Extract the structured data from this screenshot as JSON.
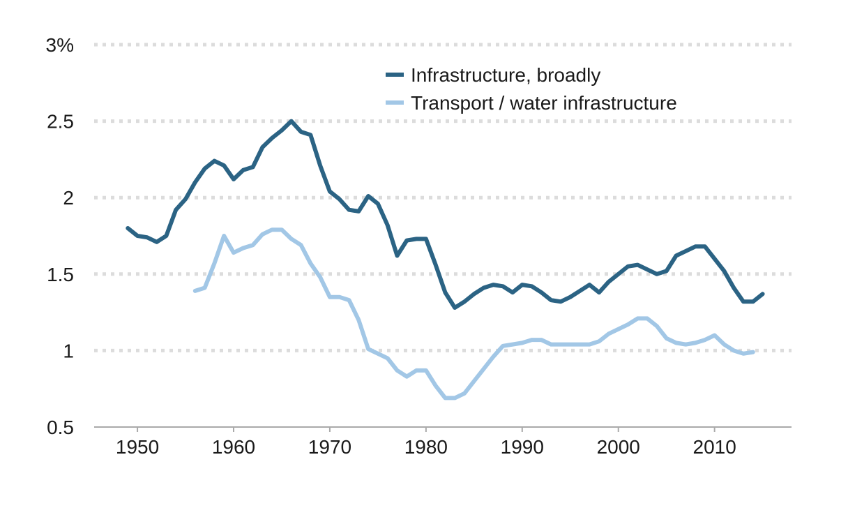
{
  "chart_data": {
    "type": "line",
    "title": "",
    "xlabel": "",
    "ylabel": "",
    "xlim": [
      1945.5,
      2018
    ],
    "ylim": [
      0.5,
      3
    ],
    "grid": true,
    "legend_placement": "top-center",
    "y_ticks": [
      {
        "value": 3,
        "label": "3%"
      },
      {
        "value": 2.5,
        "label": "2.5"
      },
      {
        "value": 2,
        "label": "2"
      },
      {
        "value": 1.5,
        "label": "1.5"
      },
      {
        "value": 1,
        "label": "1"
      },
      {
        "value": 0.5,
        "label": "0.5"
      }
    ],
    "x_ticks": [
      {
        "value": 1950,
        "label": "1950"
      },
      {
        "value": 1960,
        "label": "1960"
      },
      {
        "value": 1970,
        "label": "1970"
      },
      {
        "value": 1980,
        "label": "1980"
      },
      {
        "value": 1990,
        "label": "1990"
      },
      {
        "value": 2000,
        "label": "2000"
      },
      {
        "value": 2010,
        "label": "2010"
      }
    ],
    "series": [
      {
        "name": "Infrastructure, broadly",
        "color": "#2b6384",
        "x": [
          1949,
          1950,
          1951,
          1952,
          1953,
          1954,
          1955,
          1956,
          1957,
          1958,
          1959,
          1960,
          1961,
          1962,
          1963,
          1964,
          1965,
          1966,
          1967,
          1968,
          1969,
          1970,
          1971,
          1972,
          1973,
          1974,
          1975,
          1976,
          1977,
          1978,
          1979,
          1980,
          1981,
          1982,
          1983,
          1984,
          1985,
          1986,
          1987,
          1988,
          1989,
          1990,
          1991,
          1992,
          1993,
          1994,
          1995,
          1996,
          1997,
          1998,
          1999,
          2000,
          2001,
          2002,
          2003,
          2004,
          2005,
          2006,
          2007,
          2008,
          2009,
          2010,
          2011,
          2012,
          2013,
          2014,
          2015
        ],
        "values": [
          1.8,
          1.75,
          1.74,
          1.71,
          1.75,
          1.92,
          1.99,
          2.1,
          2.19,
          2.24,
          2.21,
          2.12,
          2.18,
          2.2,
          2.33,
          2.39,
          2.44,
          2.5,
          2.43,
          2.41,
          2.21,
          2.04,
          1.99,
          1.92,
          1.91,
          2.01,
          1.96,
          1.82,
          1.62,
          1.72,
          1.73,
          1.73,
          1.56,
          1.38,
          1.28,
          1.32,
          1.37,
          1.41,
          1.43,
          1.42,
          1.38,
          1.43,
          1.42,
          1.38,
          1.33,
          1.32,
          1.35,
          1.39,
          1.43,
          1.38,
          1.45,
          1.5,
          1.55,
          1.56,
          1.53,
          1.5,
          1.52,
          1.62,
          1.65,
          1.68,
          1.68,
          1.6,
          1.52,
          1.41,
          1.32,
          1.32,
          1.37
        ]
      },
      {
        "name": "Transport / water infrastructure",
        "color": "#a2c7e6",
        "x": [
          1956,
          1957,
          1958,
          1959,
          1960,
          1961,
          1962,
          1963,
          1964,
          1965,
          1966,
          1967,
          1968,
          1969,
          1970,
          1971,
          1972,
          1973,
          1974,
          1975,
          1976,
          1977,
          1978,
          1979,
          1980,
          1981,
          1982,
          1983,
          1984,
          1985,
          1986,
          1987,
          1988,
          1989,
          1990,
          1991,
          1992,
          1993,
          1994,
          1995,
          1996,
          1997,
          1998,
          1999,
          2000,
          2001,
          2002,
          2003,
          2004,
          2005,
          2006,
          2007,
          2008,
          2009,
          2010,
          2011,
          2012,
          2013,
          2014
        ],
        "values": [
          1.39,
          1.41,
          1.57,
          1.75,
          1.64,
          1.67,
          1.69,
          1.76,
          1.79,
          1.79,
          1.73,
          1.69,
          1.57,
          1.48,
          1.35,
          1.35,
          1.33,
          1.2,
          1.01,
          0.98,
          0.95,
          0.87,
          0.83,
          0.87,
          0.87,
          0.77,
          0.69,
          0.69,
          0.72,
          0.8,
          0.88,
          0.96,
          1.03,
          1.04,
          1.05,
          1.07,
          1.07,
          1.04,
          1.04,
          1.04,
          1.04,
          1.04,
          1.06,
          1.11,
          1.14,
          1.17,
          1.21,
          1.21,
          1.16,
          1.08,
          1.05,
          1.04,
          1.05,
          1.07,
          1.1,
          1.04,
          1.0,
          0.98,
          0.99
        ]
      }
    ]
  }
}
